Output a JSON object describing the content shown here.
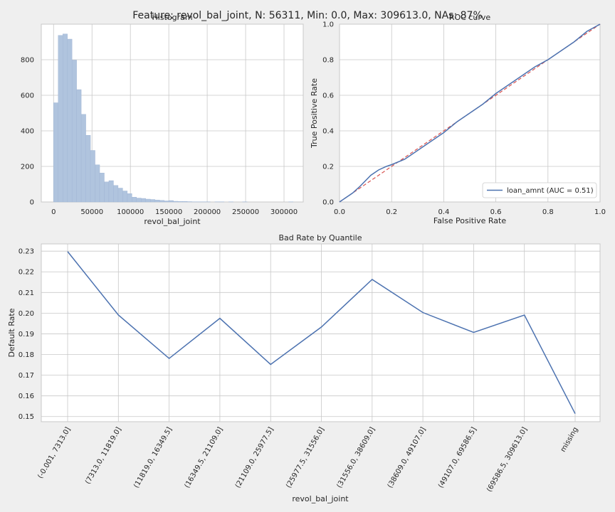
{
  "suptitle": "Feature: revol_bal_joint, N: 56311, Min: 0.0, Max: 309613.0, NAs: 87%",
  "chart_data": [
    {
      "type": "bar",
      "title": "Histogram",
      "xlabel": "revol_bal_joint",
      "ylabel": "",
      "bin_width": 6000,
      "bin_starts": [
        0,
        6000,
        12000,
        18000,
        24000,
        30000,
        36000,
        42000,
        48000,
        54000,
        60000,
        66000,
        72000,
        78000,
        84000,
        90000,
        96000,
        102000,
        108000,
        114000,
        120000,
        126000,
        132000,
        138000,
        144000,
        150000,
        156000,
        162000,
        168000,
        174000,
        180000,
        186000,
        192000,
        198000,
        204000,
        210000,
        216000,
        222000,
        228000,
        234000,
        240000,
        246000,
        252000,
        258000,
        264000,
        270000,
        276000,
        282000,
        288000,
        294000,
        300000,
        306000
      ],
      "values": [
        558,
        937,
        945,
        916,
        798,
        632,
        493,
        375,
        290,
        209,
        163,
        113,
        120,
        93,
        78,
        62,
        47,
        27,
        22,
        20,
        16,
        14,
        11,
        9,
        6,
        8,
        4,
        3,
        3,
        2,
        1,
        1,
        1,
        1,
        0,
        1,
        1,
        0,
        1,
        0,
        0,
        1,
        0,
        0,
        0,
        0,
        0,
        0,
        0,
        0,
        0,
        1
      ],
      "xlim": [
        -16000,
        325000
      ],
      "ylim": [
        0,
        1000
      ],
      "xticks": [
        0,
        50000,
        100000,
        150000,
        200000,
        250000,
        300000
      ],
      "xtick_labels": [
        "0",
        "50000",
        "100000",
        "150000",
        "200000",
        "250000",
        "300000"
      ],
      "yticks": [
        0,
        200,
        400,
        600,
        800
      ],
      "ytick_labels": [
        "0",
        "200",
        "400",
        "600",
        "800"
      ],
      "grid": true,
      "colors": {
        "bar": "#b0c4de",
        "bar_edge": "#9fb4d4"
      }
    },
    {
      "type": "line",
      "title": "ROC curve",
      "xlabel": "False Positive Rate",
      "ylabel": "True Positive Rate",
      "xlim": [
        0,
        1
      ],
      "ylim": [
        0,
        1
      ],
      "ticks": [
        0,
        0.2,
        0.4,
        0.6,
        0.8,
        1.0
      ],
      "x_tick_labels": [
        "0.0",
        "0.2",
        "0.4",
        "0.6",
        "0.8",
        "1.0"
      ],
      "y_tick_labels": [
        "0.0",
        "0.2",
        "0.4",
        "0.6",
        "0.8",
        "1.0"
      ],
      "grid": true,
      "legend_position": "lower-right",
      "series": [
        {
          "name": "loan_amnt (AUC = 0.51)",
          "color": "#4c72b0",
          "x": [
            0,
            0.02,
            0.05,
            0.08,
            0.1,
            0.12,
            0.15,
            0.18,
            0.2,
            0.25,
            0.3,
            0.35,
            0.4,
            0.45,
            0.5,
            0.55,
            0.6,
            0.65,
            0.7,
            0.75,
            0.8,
            0.85,
            0.9,
            0.95,
            1.0
          ],
          "y": [
            0,
            0.02,
            0.05,
            0.09,
            0.12,
            0.15,
            0.18,
            0.2,
            0.21,
            0.24,
            0.29,
            0.34,
            0.39,
            0.45,
            0.5,
            0.55,
            0.61,
            0.66,
            0.71,
            0.76,
            0.8,
            0.85,
            0.9,
            0.96,
            1.0
          ]
        }
      ],
      "reference_line": {
        "x": [
          0,
          1
        ],
        "y": [
          0,
          1
        ],
        "color": "#d9534f",
        "style": "dashed"
      }
    },
    {
      "type": "line",
      "title": "Bad Rate by Quantile",
      "xlabel": "revol_bal_joint",
      "ylabel": "Default Rate",
      "categories": [
        "(-0.001, 7313.0]",
        "(7313.0, 11819.0]",
        "(11819.0, 16349.5]",
        "(16349.5, 21109.0]",
        "(21109.0, 25977.5]",
        "(25977.5, 31556.0]",
        "(31556.0, 38609.0]",
        "(38609.0, 49107.0]",
        "(49107.0, 69586.5]",
        "(69586.5, 309613.0]",
        "missing"
      ],
      "series": [
        {
          "color": "#4c72b0",
          "values": [
            0.2298,
            0.1991,
            0.1781,
            0.1975,
            0.1752,
            0.1933,
            0.2163,
            0.2003,
            0.1907,
            0.1991,
            0.1514
          ]
        }
      ],
      "ylim": [
        0.1475,
        0.2335
      ],
      "yticks": [
        0.15,
        0.16,
        0.17,
        0.18,
        0.19,
        0.2,
        0.21,
        0.22,
        0.23
      ],
      "ytick_labels": [
        "0.15",
        "0.16",
        "0.17",
        "0.18",
        "0.19",
        "0.20",
        "0.21",
        "0.22",
        "0.23"
      ],
      "grid": true
    }
  ]
}
